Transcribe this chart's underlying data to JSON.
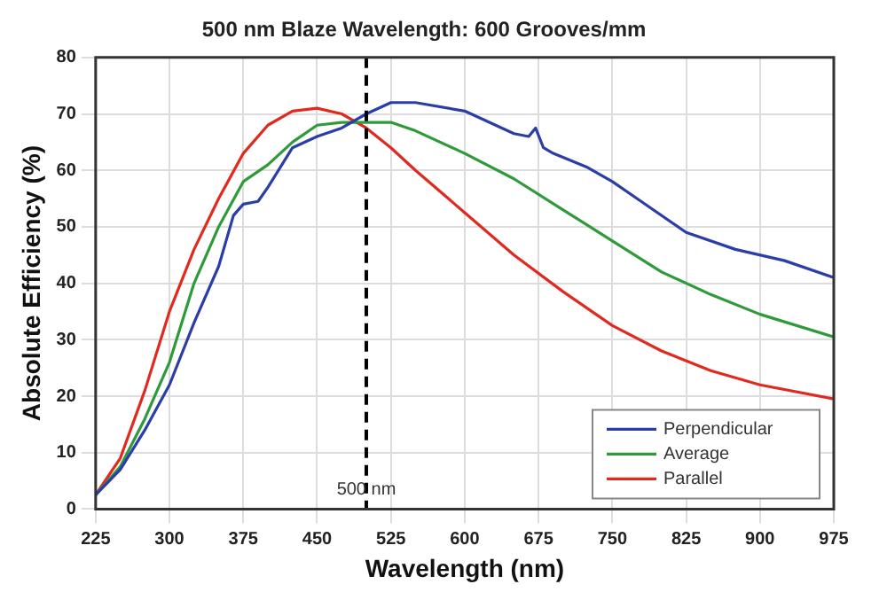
{
  "chart_data": {
    "type": "line",
    "title": "500 nm Blaze Wavelength: 600 Grooves/mm",
    "xlabel": "Wavelength (nm)",
    "ylabel": "Absolute Efficiency (%)",
    "xlim": [
      225,
      975
    ],
    "xticks": [
      225,
      300,
      375,
      450,
      525,
      600,
      675,
      750,
      825,
      900,
      975
    ],
    "ylim": [
      0,
      80
    ],
    "yticks": [
      0,
      10,
      20,
      30,
      40,
      50,
      60,
      70,
      80
    ],
    "grid": true,
    "legend": "bottom right",
    "marker": "none",
    "line_style": "solid",
    "ref_lines": [
      {
        "axis": "x",
        "value": 500,
        "label": "500 nm",
        "color": "#000000",
        "line_style": "dashed"
      }
    ],
    "series": [
      {
        "name": "Perpendicular",
        "color": "#2b3ea8",
        "x": [
          225,
          250,
          275,
          300,
          325,
          350,
          365,
          375,
          390,
          400,
          425,
          450,
          475,
          500,
          525,
          550,
          600,
          650,
          665,
          672,
          680,
          690,
          725,
          750,
          775,
          825,
          875,
          925,
          975
        ],
        "values": [
          2.5,
          7,
          14,
          22,
          33,
          43,
          52,
          54,
          54.5,
          57,
          64,
          66,
          67.5,
          70,
          72,
          72,
          70.5,
          66.5,
          66,
          67.5,
          64,
          63,
          60.5,
          58,
          55,
          49,
          46,
          44,
          41
        ]
      },
      {
        "name": "Average",
        "color": "#2e9a3a",
        "x": [
          225,
          250,
          275,
          300,
          325,
          350,
          375,
          400,
          425,
          450,
          475,
          500,
          525,
          550,
          600,
          650,
          700,
          750,
          800,
          850,
          900,
          975
        ],
        "values": [
          2.5,
          7.5,
          16,
          26,
          40,
          50,
          58,
          61,
          65,
          68,
          68.5,
          68.5,
          68.5,
          67,
          63,
          58.5,
          53,
          47.5,
          42,
          38,
          34.5,
          30.5
        ]
      },
      {
        "name": "Parallel",
        "color": "#e02a20",
        "x": [
          225,
          250,
          275,
          300,
          325,
          350,
          375,
          400,
          425,
          450,
          475,
          500,
          525,
          550,
          600,
          650,
          700,
          750,
          800,
          850,
          900,
          975
        ],
        "values": [
          2.5,
          9,
          21,
          35,
          46,
          55,
          63,
          68,
          70.5,
          71,
          70,
          67.5,
          64,
          60,
          52.5,
          45,
          38.5,
          32.5,
          28,
          24.5,
          22,
          19.5
        ]
      }
    ]
  }
}
